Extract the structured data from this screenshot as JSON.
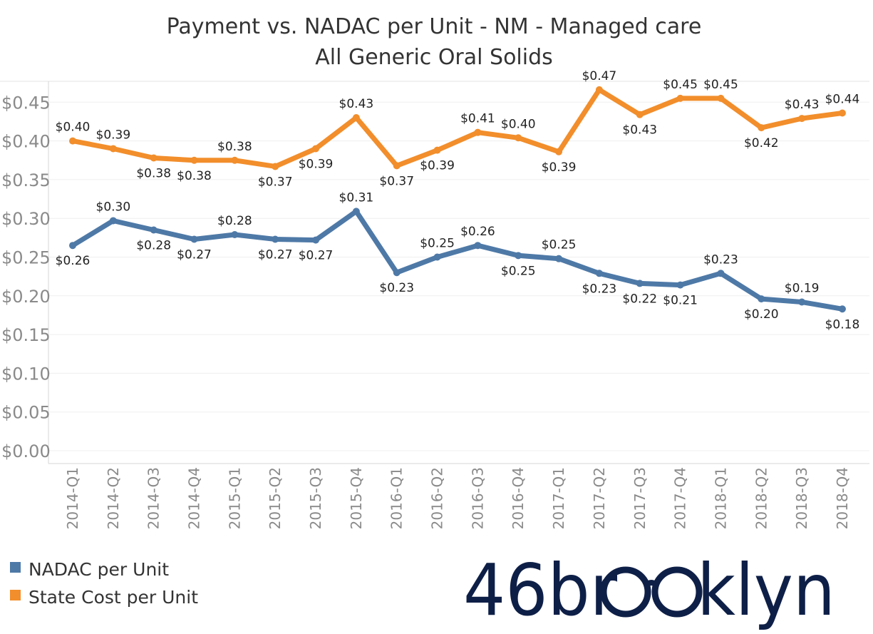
{
  "chart_data": {
    "type": "line",
    "title": "Payment vs. NADAC per Unit - NM - Managed care",
    "subtitle": "All Generic Oral Solids",
    "xlabel": "",
    "ylabel": "",
    "ylim": [
      0,
      0.49
    ],
    "yticks": [
      "$0.00",
      "$0.05",
      "$0.10",
      "$0.15",
      "$0.20",
      "$0.25",
      "$0.30",
      "$0.35",
      "$0.40",
      "$0.45"
    ],
    "yticks_values": [
      0,
      0.05,
      0.1,
      0.15,
      0.2,
      0.25,
      0.3,
      0.35,
      0.4,
      0.45
    ],
    "grid": true,
    "legend_position": "bottom-left",
    "categories": [
      "2014-Q1",
      "2014-Q2",
      "2014-Q3",
      "2014-Q4",
      "2015-Q1",
      "2015-Q2",
      "2015-Q3",
      "2015-Q4",
      "2016-Q1",
      "2016-Q2",
      "2016-Q3",
      "2016-Q4",
      "2017-Q1",
      "2017-Q2",
      "2017-Q3",
      "2017-Q4",
      "2018-Q1",
      "2018-Q2",
      "2018-Q3",
      "2018-Q4"
    ],
    "series": [
      {
        "name": "NADAC per Unit",
        "color": "#4e79a7",
        "values": [
          0.265,
          0.297,
          0.285,
          0.273,
          0.279,
          0.273,
          0.272,
          0.309,
          0.23,
          0.25,
          0.265,
          0.252,
          0.248,
          0.229,
          0.216,
          0.214,
          0.229,
          0.196,
          0.192,
          0.183
        ],
        "labels": [
          "$0.26",
          "$0.30",
          "$0.28",
          "$0.27",
          "$0.28",
          "$0.27",
          "$0.27",
          "$0.31",
          "$0.23",
          "$0.25",
          "$0.26",
          "$0.25",
          "$0.25",
          "$0.23",
          "$0.22",
          "$0.21",
          "$0.23",
          "$0.20",
          "$0.19",
          "$0.18"
        ],
        "label_pos": [
          "below",
          "above",
          "below",
          "below",
          "above",
          "below",
          "below",
          "above",
          "below",
          "above",
          "above",
          "below",
          "above",
          "below",
          "below",
          "below",
          "above",
          "below",
          "above",
          "below"
        ]
      },
      {
        "name": "State Cost per Unit",
        "color": "#f28e2b",
        "values": [
          0.4,
          0.39,
          0.378,
          0.375,
          0.375,
          0.367,
          0.39,
          0.43,
          0.368,
          0.388,
          0.411,
          0.404,
          0.386,
          0.466,
          0.434,
          0.455,
          0.455,
          0.417,
          0.429,
          0.436
        ],
        "labels": [
          "$0.40",
          "$0.39",
          "$0.38",
          "$0.38",
          "$0.38",
          "$0.37",
          "$0.39",
          "$0.43",
          "$0.37",
          "$0.39",
          "$0.41",
          "$0.40",
          "$0.39",
          "$0.47",
          "$0.43",
          "$0.45",
          "$0.45",
          "$0.42",
          "$0.43",
          "$0.44"
        ],
        "label_pos": [
          "above",
          "above",
          "below",
          "below",
          "above",
          "below",
          "below",
          "above",
          "below",
          "below",
          "above",
          "above",
          "below",
          "above",
          "below",
          "above",
          "above",
          "below",
          "above",
          "above"
        ]
      }
    ]
  },
  "logo": {
    "text": "46brooklyn"
  }
}
